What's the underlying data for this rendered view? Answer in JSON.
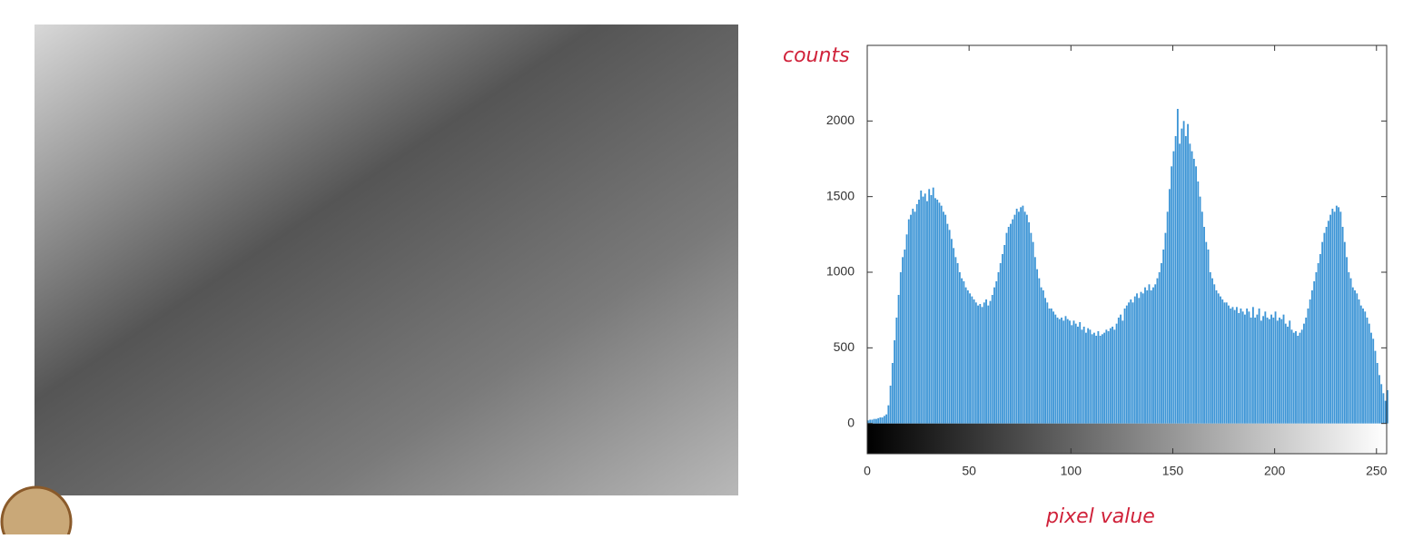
{
  "chart_data": {
    "type": "histogram",
    "annotations": [
      "counts",
      "pixel value"
    ],
    "color": "#3d95d6",
    "bins": [
      0,
      1,
      2,
      3,
      4,
      5,
      6,
      7,
      8,
      9,
      10,
      11,
      12,
      13,
      14,
      15,
      16,
      17,
      18,
      19,
      20,
      21,
      22,
      23,
      24,
      25,
      26,
      27,
      28,
      29,
      30,
      31,
      32,
      33,
      34,
      35,
      36,
      37,
      38,
      39,
      40,
      41,
      42,
      43,
      44,
      45,
      46,
      47,
      48,
      49,
      50,
      51,
      52,
      53,
      54,
      55,
      56,
      57,
      58,
      59,
      60,
      61,
      62,
      63,
      64,
      65,
      66,
      67,
      68,
      69,
      70,
      71,
      72,
      73,
      74,
      75,
      76,
      77,
      78,
      79,
      80,
      81,
      82,
      83,
      84,
      85,
      86,
      87,
      88,
      89,
      90,
      91,
      92,
      93,
      94,
      95,
      96,
      97,
      98,
      99,
      100,
      101,
      102,
      103,
      104,
      105,
      106,
      107,
      108,
      109,
      110,
      111,
      112,
      113,
      114,
      115,
      116,
      117,
      118,
      119,
      120,
      121,
      122,
      123,
      124,
      125,
      126,
      127,
      128,
      129,
      130,
      131,
      132,
      133,
      134,
      135,
      136,
      137,
      138,
      139,
      140,
      141,
      142,
      143,
      144,
      145,
      146,
      147,
      148,
      149,
      150,
      151,
      152,
      153,
      154,
      155,
      156,
      157,
      158,
      159,
      160,
      161,
      162,
      163,
      164,
      165,
      166,
      167,
      168,
      169,
      170,
      171,
      172,
      173,
      174,
      175,
      176,
      177,
      178,
      179,
      180,
      181,
      182,
      183,
      184,
      185,
      186,
      187,
      188,
      189,
      190,
      191,
      192,
      193,
      194,
      195,
      196,
      197,
      198,
      199,
      200,
      201,
      202,
      203,
      204,
      205,
      206,
      207,
      208,
      209,
      210,
      211,
      212,
      213,
      214,
      215,
      216,
      217,
      218,
      219,
      220,
      221,
      222,
      223,
      224,
      225,
      226,
      227,
      228,
      229,
      230,
      231,
      232,
      233,
      234,
      235,
      236,
      237,
      238,
      239,
      240,
      241,
      242,
      243,
      244,
      245,
      246,
      247,
      248,
      249,
      250,
      251,
      252,
      253,
      254,
      255,
      256
    ],
    "values": [
      20,
      25,
      25,
      30,
      30,
      35,
      40,
      40,
      50,
      60,
      120,
      250,
      400,
      550,
      700,
      850,
      1000,
      1100,
      1150,
      1250,
      1350,
      1380,
      1420,
      1400,
      1450,
      1480,
      1540,
      1500,
      1520,
      1470,
      1550,
      1510,
      1560,
      1490,
      1480,
      1460,
      1440,
      1400,
      1380,
      1320,
      1280,
      1220,
      1160,
      1100,
      1060,
      1000,
      960,
      940,
      900,
      880,
      860,
      840,
      820,
      800,
      780,
      790,
      770,
      800,
      820,
      780,
      810,
      850,
      900,
      940,
      1000,
      1060,
      1120,
      1180,
      1260,
      1300,
      1320,
      1350,
      1380,
      1420,
      1400,
      1430,
      1440,
      1400,
      1380,
      1330,
      1260,
      1200,
      1100,
      1020,
      960,
      900,
      880,
      830,
      800,
      760,
      760,
      740,
      720,
      700,
      690,
      700,
      680,
      710,
      690,
      680,
      650,
      680,
      660,
      640,
      670,
      620,
      640,
      600,
      630,
      620,
      590,
      600,
      580,
      610,
      580,
      590,
      600,
      620,
      610,
      630,
      640,
      620,
      660,
      700,
      720,
      680,
      760,
      780,
      800,
      820,
      800,
      840,
      860,
      830,
      870,
      860,
      900,
      880,
      920,
      880,
      900,
      920,
      960,
      1000,
      1060,
      1150,
      1260,
      1400,
      1550,
      1700,
      1800,
      1900,
      2080,
      1850,
      1950,
      2000,
      1900,
      1980,
      1850,
      1800,
      1750,
      1700,
      1600,
      1500,
      1400,
      1300,
      1200,
      1150,
      1000,
      960,
      920,
      880,
      860,
      840,
      820,
      800,
      800,
      780,
      760,
      770,
      750,
      770,
      730,
      760,
      740,
      720,
      760,
      740,
      700,
      770,
      700,
      720,
      760,
      680,
      710,
      740,
      700,
      690,
      720,
      700,
      740,
      680,
      700,
      690,
      720,
      660,
      640,
      680,
      620,
      600,
      610,
      580,
      600,
      620,
      660,
      700,
      760,
      820,
      880,
      940,
      1000,
      1060,
      1120,
      1200,
      1260,
      1300,
      1340,
      1380,
      1420,
      1400,
      1440,
      1430,
      1400,
      1300,
      1200,
      1100,
      1000,
      960,
      900,
      880,
      860,
      820,
      780,
      760,
      740,
      700,
      660,
      600,
      560,
      480,
      400,
      320,
      260,
      200,
      150,
      220
    ],
    "xlim": [
      0,
      255
    ],
    "ylim": [
      -200,
      2500
    ],
    "xticks": [
      0,
      50,
      100,
      150,
      200,
      250
    ],
    "yticks": [
      0,
      500,
      1000,
      1500,
      2000
    ]
  }
}
